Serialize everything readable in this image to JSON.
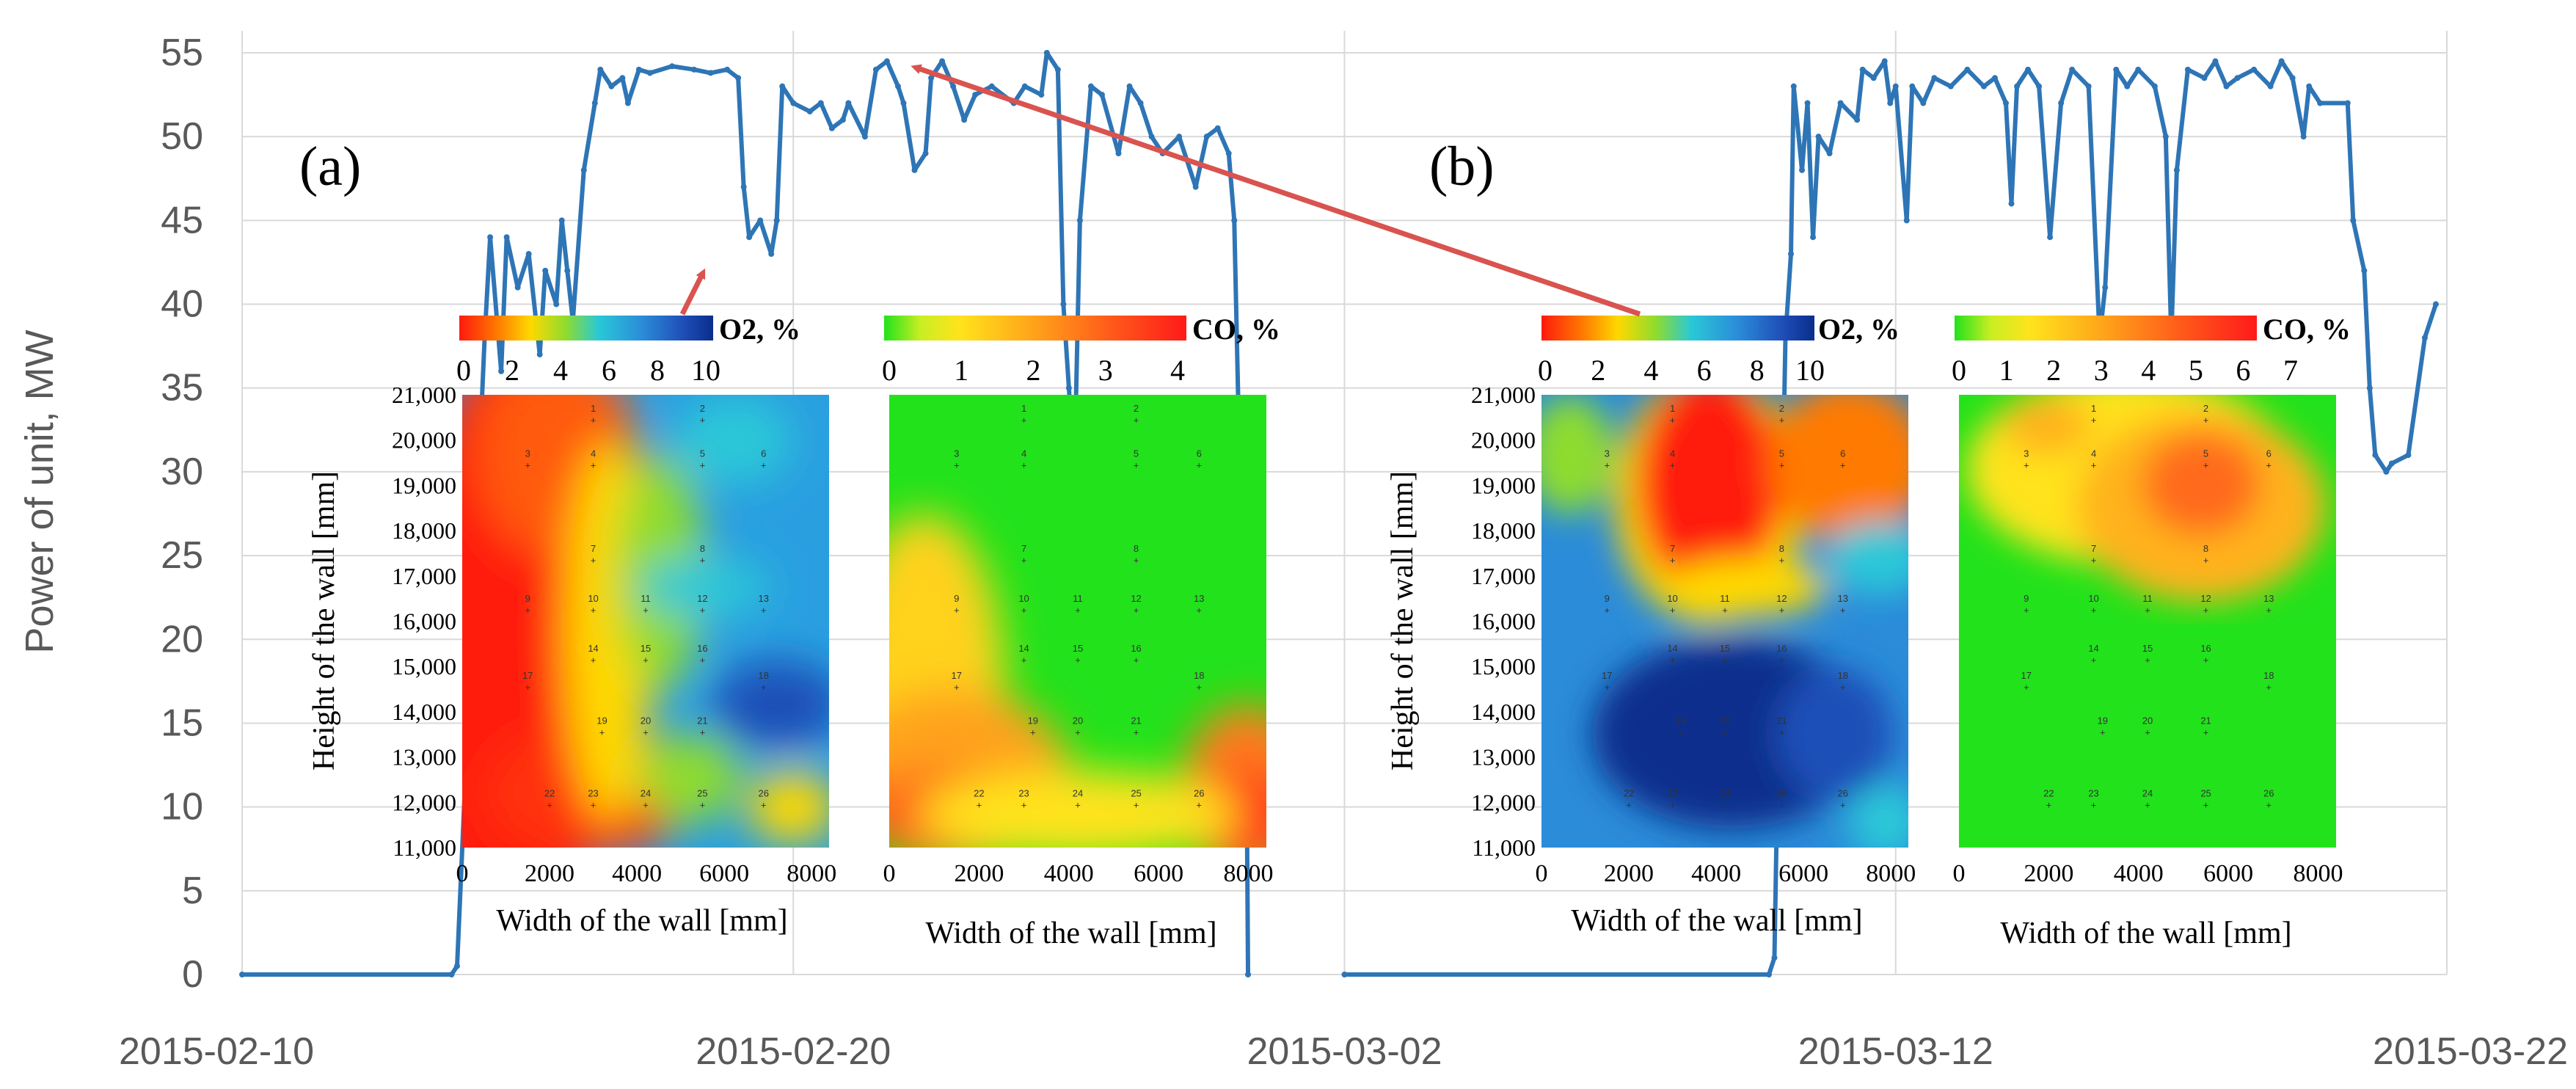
{
  "chart_data": {
    "type": "line",
    "ylabel": "Power of unit, MW",
    "ylim": [
      0,
      55
    ],
    "yticks": [
      "0",
      "5",
      "10",
      "15",
      "20",
      "25",
      "30",
      "35",
      "40",
      "45",
      "50",
      "55"
    ],
    "xlim": [
      "2015-02-10",
      "2015-03-22"
    ],
    "xticks": [
      "2015-02-10",
      "2015-02-20",
      "2015-03-02",
      "2015-03-12",
      "2015-03-22"
    ],
    "line_color": "#2E75B6",
    "series": [
      {
        "values": [
          [
            "2015-02-10",
            0
          ],
          [
            "2015-02-13.8",
            0
          ],
          [
            "2015-02-13.9",
            0.5
          ],
          [
            "2015-02-14.4",
            38
          ],
          [
            "2015-02-14.5",
            44
          ],
          [
            "2015-02-14.7",
            36
          ],
          [
            "2015-02-14.8",
            44
          ],
          [
            "2015-02-15.0",
            41
          ],
          [
            "2015-02-15.2",
            43
          ],
          [
            "2015-02-15.4",
            37
          ],
          [
            "2015-02-15.5",
            42
          ],
          [
            "2015-02-15.7",
            40
          ],
          [
            "2015-02-15.8",
            45
          ],
          [
            "2015-02-15.9",
            42
          ],
          [
            "2015-02-16.0",
            39
          ],
          [
            "2015-02-16.2",
            48
          ],
          [
            "2015-02-16.4",
            52
          ],
          [
            "2015-02-16.5",
            54
          ],
          [
            "2015-02-16.7",
            53
          ],
          [
            "2015-02-16.9",
            53.5
          ],
          [
            "2015-02-17.0",
            52
          ],
          [
            "2015-02-17.2",
            54
          ],
          [
            "2015-02-17.4",
            53.8
          ],
          [
            "2015-02-17.8",
            54.2
          ],
          [
            "2015-02-18.2",
            54
          ],
          [
            "2015-02-18.5",
            53.8
          ],
          [
            "2015-02-18.8",
            54
          ],
          [
            "2015-02-19.0",
            53.5
          ],
          [
            "2015-02-19.1",
            47
          ],
          [
            "2015-02-19.2",
            44
          ],
          [
            "2015-02-19.4",
            45
          ],
          [
            "2015-02-19.6",
            43
          ],
          [
            "2015-02-19.7",
            45
          ],
          [
            "2015-02-19.8",
            53
          ],
          [
            "2015-02-20.0",
            52
          ],
          [
            "2015-02-20.3",
            51.5
          ],
          [
            "2015-02-20.5",
            52
          ],
          [
            "2015-02-20.7",
            50.5
          ],
          [
            "2015-02-20.9",
            51
          ],
          [
            "2015-02-21.0",
            52
          ],
          [
            "2015-02-21.3",
            50
          ],
          [
            "2015-02-21.5",
            54
          ],
          [
            "2015-02-21.7",
            54.5
          ],
          [
            "2015-02-21.9",
            53
          ],
          [
            "2015-02-22.0",
            52
          ],
          [
            "2015-02-22.2",
            48
          ],
          [
            "2015-02-22.4",
            49
          ],
          [
            "2015-02-22.5",
            53.5
          ],
          [
            "2015-02-22.7",
            54.5
          ],
          [
            "2015-02-22.9",
            53
          ],
          [
            "2015-02-23.1",
            51
          ],
          [
            "2015-02-23.3",
            52.5
          ],
          [
            "2015-02-23.6",
            53
          ],
          [
            "2015-02-24.0",
            52
          ],
          [
            "2015-02-24.2",
            53
          ],
          [
            "2015-02-24.5",
            52.5
          ],
          [
            "2015-02-24.6",
            55
          ],
          [
            "2015-02-24.8",
            54
          ],
          [
            "2015-02-24.9",
            40
          ],
          [
            "2015-02-25.0",
            35
          ],
          [
            "2015-02-25.1",
            30
          ],
          [
            "2015-02-25.2",
            45
          ],
          [
            "2015-02-25.4",
            53
          ],
          [
            "2015-02-25.6",
            52.5
          ],
          [
            "2015-02-25.9",
            49
          ],
          [
            "2015-02-26.1",
            53
          ],
          [
            "2015-02-26.3",
            52
          ],
          [
            "2015-02-26.5",
            50
          ],
          [
            "2015-02-26.7",
            49
          ],
          [
            "2015-02-27.0",
            50
          ],
          [
            "2015-02-27.3",
            47
          ],
          [
            "2015-02-27.5",
            50
          ],
          [
            "2015-02-27.7",
            50.5
          ],
          [
            "2015-02-27.9",
            49
          ],
          [
            "2015-02-28.0",
            45
          ],
          [
            "2015-02-28.1",
            30
          ],
          [
            "2015-02-28.2",
            24
          ],
          [
            "2015-02-28.25",
            0
          ]
        ]
      },
      {
        "values": [
          [
            "2015-03-02",
            0
          ],
          [
            "2015-03-09.7",
            0
          ],
          [
            "2015-03-09.8",
            1
          ],
          [
            "2015-03-09.9",
            20
          ],
          [
            "2015-03-10.0",
            38
          ],
          [
            "2015-03-10.1",
            43
          ],
          [
            "2015-03-10.15",
            53
          ],
          [
            "2015-03-10.3",
            48
          ],
          [
            "2015-03-10.4",
            52
          ],
          [
            "2015-03-10.5",
            44
          ],
          [
            "2015-03-10.6",
            50
          ],
          [
            "2015-03-10.8",
            49
          ],
          [
            "2015-03-11.0",
            52
          ],
          [
            "2015-03-11.3",
            51
          ],
          [
            "2015-03-11.4",
            54
          ],
          [
            "2015-03-11.6",
            53.5
          ],
          [
            "2015-03-11.8",
            54.5
          ],
          [
            "2015-03-11.9",
            52
          ],
          [
            "2015-03-12.0",
            53
          ],
          [
            "2015-03-12.2",
            45
          ],
          [
            "2015-03-12.3",
            53
          ],
          [
            "2015-03-12.5",
            52
          ],
          [
            "2015-03-12.7",
            53.5
          ],
          [
            "2015-03-13.0",
            53
          ],
          [
            "2015-03-13.3",
            54
          ],
          [
            "2015-03-13.6",
            53
          ],
          [
            "2015-03-13.8",
            53.5
          ],
          [
            "2015-03-14.0",
            52
          ],
          [
            "2015-03-14.1",
            46
          ],
          [
            "2015-03-14.2",
            53
          ],
          [
            "2015-03-14.4",
            54
          ],
          [
            "2015-03-14.6",
            53
          ],
          [
            "2015-03-14.8",
            44
          ],
          [
            "2015-03-15.0",
            52
          ],
          [
            "2015-03-15.2",
            54
          ],
          [
            "2015-03-15.5",
            53
          ],
          [
            "2015-03-15.7",
            38
          ],
          [
            "2015-03-15.8",
            41
          ],
          [
            "2015-03-16.0",
            54
          ],
          [
            "2015-03-16.2",
            53
          ],
          [
            "2015-03-16.4",
            54
          ],
          [
            "2015-03-16.7",
            53
          ],
          [
            "2015-03-16.9",
            50
          ],
          [
            "2015-03-17.0",
            38
          ],
          [
            "2015-03-17.1",
            48
          ],
          [
            "2015-03-17.3",
            54
          ],
          [
            "2015-03-17.6",
            53.5
          ],
          [
            "2015-03-17.8",
            54.5
          ],
          [
            "2015-03-18.0",
            53
          ],
          [
            "2015-03-18.2",
            53.5
          ],
          [
            "2015-03-18.5",
            54
          ],
          [
            "2015-03-18.8",
            53
          ],
          [
            "2015-03-19.0",
            54.5
          ],
          [
            "2015-03-19.2",
            53.5
          ],
          [
            "2015-03-19.4",
            50
          ],
          [
            "2015-03-19.5",
            53
          ],
          [
            "2015-03-19.7",
            52
          ],
          [
            "2015-03-20.2",
            52
          ],
          [
            "2015-03-20.3",
            45
          ],
          [
            "2015-03-20.5",
            42
          ],
          [
            "2015-03-20.6",
            35
          ],
          [
            "2015-03-20.7",
            31
          ],
          [
            "2015-03-20.9",
            30
          ],
          [
            "2015-03-21.0",
            30.5
          ],
          [
            "2015-03-21.3",
            31
          ],
          [
            "2015-03-21.6",
            38
          ],
          [
            "2015-03-21.8",
            40
          ]
        ]
      }
    ]
  },
  "panels": {
    "a": {
      "label": "(a)"
    },
    "b": {
      "label": "(b)"
    }
  },
  "insets": {
    "ylabel": "Height of the wall [mm]",
    "xlabel": "Width of the wall [mm]",
    "yticks": [
      "21,000",
      "20,000",
      "19,000",
      "18,000",
      "17,000",
      "16,000",
      "15,000",
      "14,000",
      "13,000",
      "12,000",
      "11,000"
    ],
    "xticks": [
      "0",
      "2000",
      "4000",
      "6000",
      "8000"
    ],
    "o2_scale": {
      "label": "O2, %",
      "ticks": [
        "0",
        "2",
        "4",
        "6",
        "8",
        "10"
      ]
    },
    "co_scale_a": {
      "label": "CO, %",
      "ticks": [
        "0",
        "1",
        "2",
        "3",
        "4"
      ]
    },
    "co_scale_b": {
      "label": "CO, %",
      "ticks": [
        "0",
        "1",
        "2",
        "3",
        "4",
        "5",
        "6",
        "7"
      ]
    },
    "point_labels": [
      "1",
      "2",
      "3",
      "4",
      "5",
      "6",
      "7",
      "8",
      "9",
      "10",
      "11",
      "12",
      "13",
      "14",
      "15",
      "16",
      "17",
      "18",
      "19",
      "20",
      "21",
      "22",
      "23",
      "24",
      "25",
      "26"
    ]
  },
  "colors": {
    "line": "#2E75B6",
    "arrow": "#D9534F",
    "grid": "#D9D9D9",
    "o2_low": "#ff2a12",
    "o2_high": "#0a2d8c",
    "co_low": "#22e21c",
    "co_high": "#ff1a1a"
  }
}
